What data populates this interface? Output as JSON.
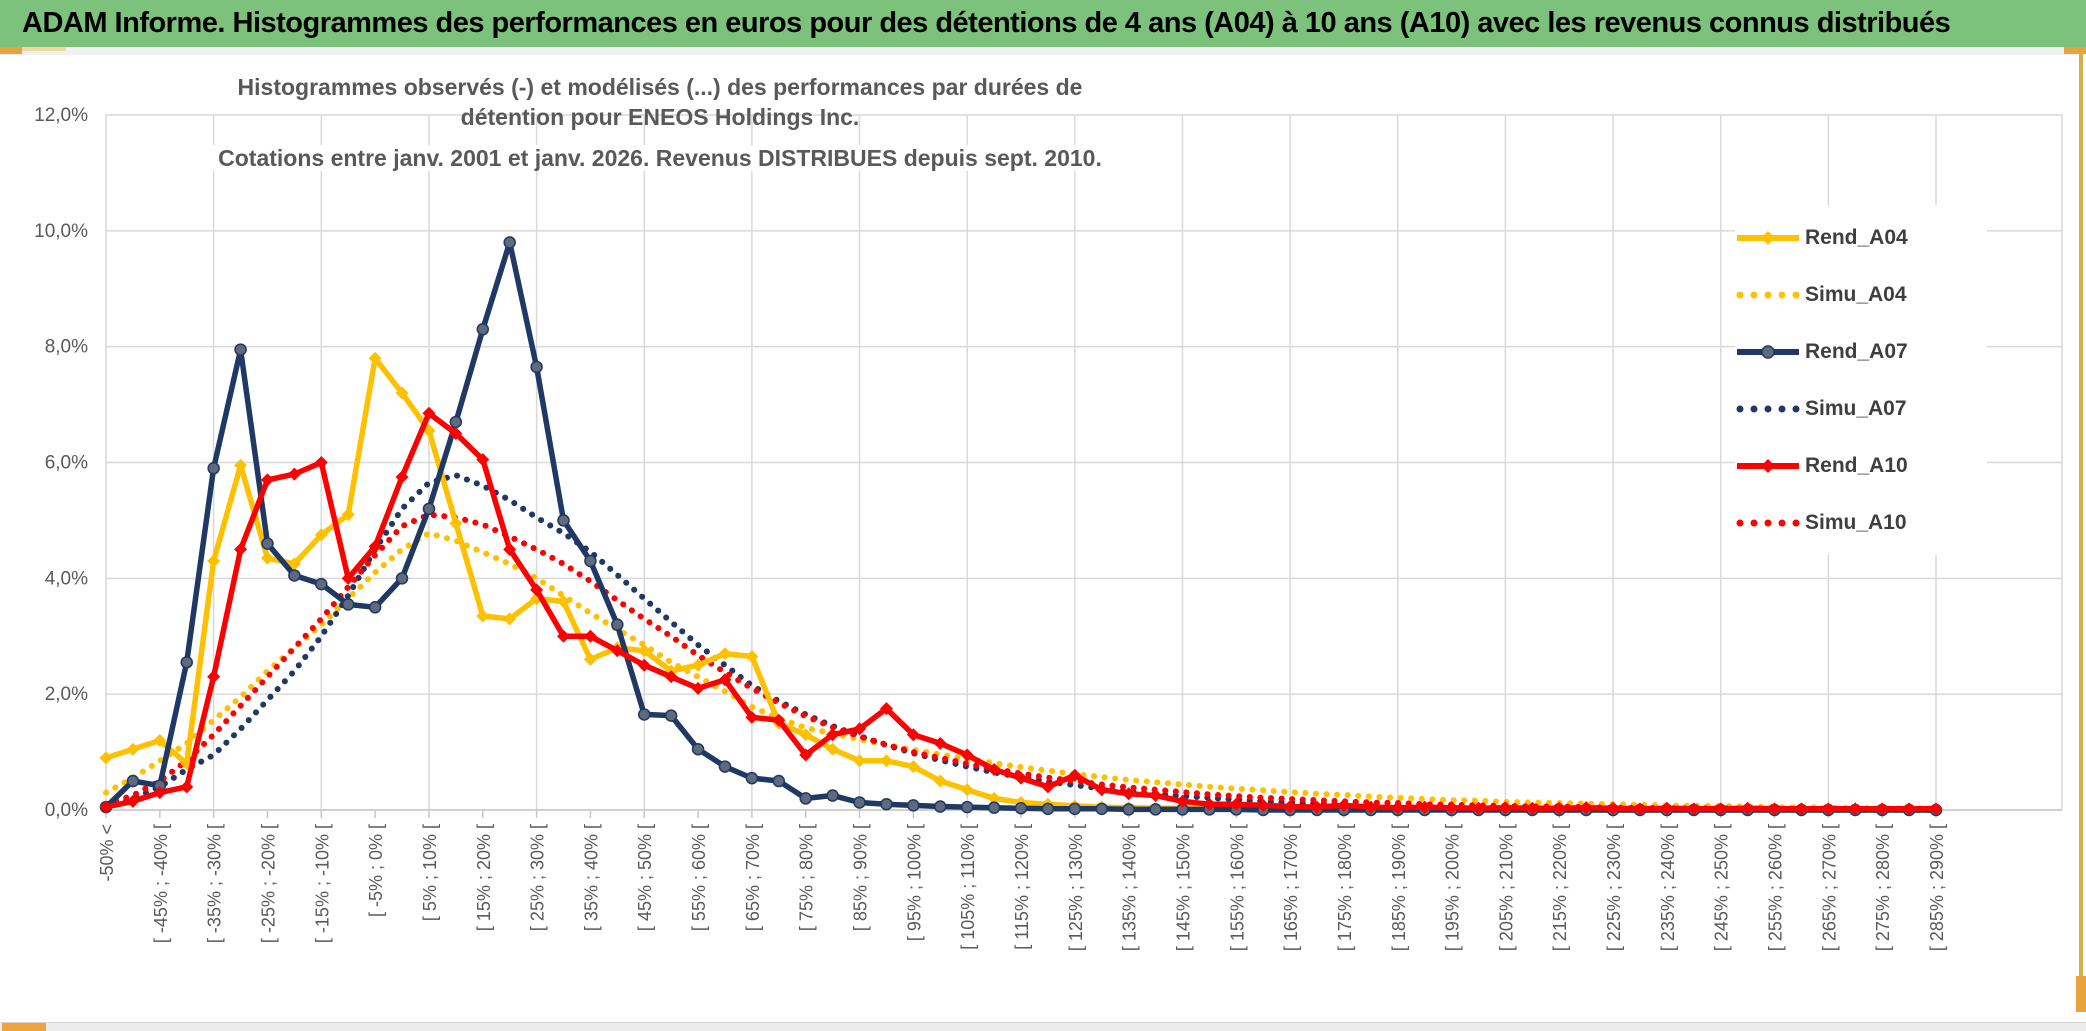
{
  "header": {
    "title": "ADAM Informe. Histogrammes des performances en euros pour des détentions de 4 ans (A04) à 10 ans (A10) avec les revenus connus distribués",
    "bg_color": "#7cc17c",
    "accent_gold": "#e8a33d"
  },
  "scrollbar": {
    "thumb_color": "#f0a23e"
  },
  "chart_data": {
    "type": "line",
    "title_line1": "Histogrammes observés (-) et modélisés (...) des performances par durées de détention pour ENEOS Holdings Inc.",
    "title_line2": "Cotations entre janv. 2001 et janv. 2026. Revenus DISTRIBUES depuis sept. 2010.",
    "ylabel": "",
    "xlabel": "",
    "ylim": [
      0,
      12
    ],
    "y_tick_labels": [
      "0,0%",
      "2,0%",
      "4,0%",
      "6,0%",
      "8,0%",
      "10,0%",
      "12,0%"
    ],
    "grid": "on",
    "grid_color": "#d9d9d9",
    "axis_text_color": "#595959",
    "legend_position": "right",
    "n_points": 69,
    "x_labels_every_n_points": 2,
    "x_tick_labels": [
      "-50% <",
      "[ -45% ; -40% [",
      "[ -35% ; -30% [",
      "[ -25% ; -20% [",
      "[ -15% ; -10% [",
      "[ -5% ; 0% [",
      "[ 5% ; 10% [",
      "[ 15% ; 20% [",
      "[ 25% ; 30% [",
      "[ 35% ; 40% [",
      "[ 45% ; 50% [",
      "[ 55% ; 60% [",
      "[ 65% ; 70% [",
      "[ 75% ; 80% [",
      "[ 85% ; 90% [",
      "[ 95% ; 100% [",
      "[ 105% ; 110% [",
      "[ 115% ; 120% [",
      "[ 125% ; 130% [",
      "[ 135% ; 140% [",
      "[ 145% ; 150% [",
      "[ 155% ; 160% [",
      "[ 165% ; 170% [",
      "[ 175% ; 180% [",
      "[ 185% ; 190% [",
      "[ 195% ; 200% [",
      "[ 205% ; 210% [",
      "[ 215% ; 220% [",
      "[ 225% ; 230% [",
      "[ 235% ; 240% [",
      "[ 245% ; 250% [",
      "[ 255% ; 260% [",
      "[ 265% ; 270% [",
      "[ 275% ; 280% [",
      "[ 285% ; 290% ["
    ],
    "series": [
      {
        "name": "Rend_A04",
        "style": "solid",
        "marker": "diamond",
        "color": "#FFC000",
        "values": [
          0.9,
          1.05,
          1.2,
          0.8,
          4.3,
          5.95,
          4.35,
          4.25,
          4.75,
          5.1,
          7.8,
          7.2,
          6.55,
          4.95,
          3.35,
          3.3,
          3.65,
          3.6,
          2.6,
          2.8,
          2.75,
          2.4,
          2.5,
          2.7,
          2.65,
          1.5,
          1.3,
          1.05,
          0.85,
          0.85,
          0.75,
          0.5,
          0.35,
          0.2,
          0.13,
          0.1,
          0.07,
          0.05,
          0.04,
          0.03,
          0.03,
          0.02,
          0.02,
          0.02,
          0.01,
          0.01,
          0.01,
          0.01,
          0.01,
          0.01,
          0.01,
          0.01,
          0,
          0,
          0,
          0,
          0,
          0,
          0,
          0,
          0,
          0,
          0,
          0,
          0,
          0,
          0,
          0,
          0
        ]
      },
      {
        "name": "Simu_A04",
        "style": "dotted",
        "marker": "none",
        "color": "#FFC000",
        "values": [
          0.3,
          0.55,
          0.85,
          1.15,
          1.55,
          1.95,
          2.4,
          2.8,
          3.2,
          3.65,
          4.1,
          4.5,
          4.78,
          4.65,
          4.45,
          4.25,
          4.0,
          3.7,
          3.4,
          3.12,
          2.85,
          2.55,
          2.3,
          2.05,
          1.78,
          1.58,
          1.42,
          1.32,
          1.22,
          1.12,
          1.04,
          0.96,
          0.88,
          0.81,
          0.74,
          0.68,
          0.62,
          0.57,
          0.52,
          0.48,
          0.44,
          0.4,
          0.37,
          0.34,
          0.31,
          0.28,
          0.26,
          0.23,
          0.21,
          0.19,
          0.17,
          0.16,
          0.14,
          0.13,
          0.12,
          0.11,
          0.1,
          0.09,
          0.08,
          0.07,
          0.07,
          0.06,
          0.05,
          0.05,
          0.04,
          0.04,
          0.03,
          0.03,
          0.03
        ]
      },
      {
        "name": "Rend_A07",
        "style": "solid",
        "marker": "circle",
        "color": "#1F3864",
        "values": [
          0.05,
          0.5,
          0.42,
          2.55,
          5.9,
          7.95,
          4.6,
          4.05,
          3.9,
          3.55,
          3.5,
          4.0,
          5.2,
          6.7,
          8.3,
          9.8,
          7.65,
          5.0,
          4.3,
          3.2,
          1.65,
          1.63,
          1.05,
          0.75,
          0.55,
          0.5,
          0.2,
          0.25,
          0.13,
          0.1,
          0.08,
          0.06,
          0.05,
          0.04,
          0.03,
          0.02,
          0.02,
          0.02,
          0.01,
          0.01,
          0.01,
          0.01,
          0.01,
          0,
          0,
          0,
          0,
          0,
          0,
          0,
          0,
          0,
          0,
          0,
          0,
          0,
          0,
          0,
          0,
          0,
          0,
          0,
          0,
          0,
          0,
          0,
          0,
          0,
          0
        ]
      },
      {
        "name": "Simu_A07",
        "style": "dotted",
        "marker": "none",
        "color": "#1F3864",
        "values": [
          0.05,
          0.2,
          0.4,
          0.7,
          0.95,
          1.4,
          1.9,
          2.4,
          3.0,
          3.7,
          4.5,
          5.2,
          5.65,
          5.78,
          5.6,
          5.35,
          5.05,
          4.78,
          4.46,
          4.06,
          3.65,
          3.25,
          2.85,
          2.5,
          2.15,
          1.88,
          1.65,
          1.45,
          1.28,
          1.12,
          0.98,
          0.86,
          0.75,
          0.65,
          0.57,
          0.49,
          0.43,
          0.37,
          0.32,
          0.28,
          0.24,
          0.21,
          0.18,
          0.15,
          0.13,
          0.11,
          0.1,
          0.08,
          0.07,
          0.06,
          0.05,
          0.05,
          0.04,
          0.03,
          0.03,
          0.03,
          0.02,
          0.02,
          0.02,
          0.01,
          0.01,
          0.01,
          0.01,
          0.01,
          0.01,
          0,
          0,
          0,
          0
        ]
      },
      {
        "name": "Rend_A10",
        "style": "solid",
        "marker": "diamond",
        "color": "#FE0000",
        "values": [
          0.05,
          0.15,
          0.3,
          0.4,
          2.3,
          4.5,
          5.7,
          5.8,
          6.0,
          4.0,
          4.55,
          5.75,
          6.85,
          6.5,
          6.05,
          4.5,
          3.8,
          3.0,
          3.0,
          2.75,
          2.5,
          2.3,
          2.1,
          2.25,
          1.6,
          1.55,
          0.95,
          1.3,
          1.4,
          1.75,
          1.3,
          1.15,
          0.95,
          0.7,
          0.55,
          0.4,
          0.6,
          0.35,
          0.28,
          0.25,
          0.15,
          0.1,
          0.1,
          0.08,
          0.06,
          0.05,
          0.08,
          0.05,
          0.04,
          0.05,
          0.04,
          0.03,
          0.04,
          0.03,
          0.03,
          0.04,
          0.03,
          0.02,
          0.03,
          0.02,
          0.02,
          0.03,
          0.02,
          0.02,
          0.02,
          0.02,
          0.02,
          0.02,
          0.02
        ]
      },
      {
        "name": "Simu_A10",
        "style": "dotted",
        "marker": "none",
        "color": "#FE0000",
        "values": [
          0.1,
          0.25,
          0.5,
          0.85,
          1.3,
          1.8,
          2.3,
          2.8,
          3.3,
          3.85,
          4.4,
          4.9,
          5.1,
          5.05,
          4.93,
          4.72,
          4.5,
          4.25,
          3.95,
          3.62,
          3.3,
          3.0,
          2.67,
          2.38,
          2.1,
          1.85,
          1.62,
          1.43,
          1.27,
          1.13,
          1.0,
          0.9,
          0.8,
          0.71,
          0.63,
          0.56,
          0.5,
          0.44,
          0.39,
          0.35,
          0.31,
          0.27,
          0.24,
          0.21,
          0.19,
          0.17,
          0.15,
          0.13,
          0.12,
          0.1,
          0.09,
          0.08,
          0.07,
          0.06,
          0.06,
          0.05,
          0.04,
          0.04,
          0.03,
          0.03,
          0.03,
          0.02,
          0.02,
          0.02,
          0.02,
          0.01,
          0.01,
          0.01,
          0.01
        ]
      }
    ]
  }
}
